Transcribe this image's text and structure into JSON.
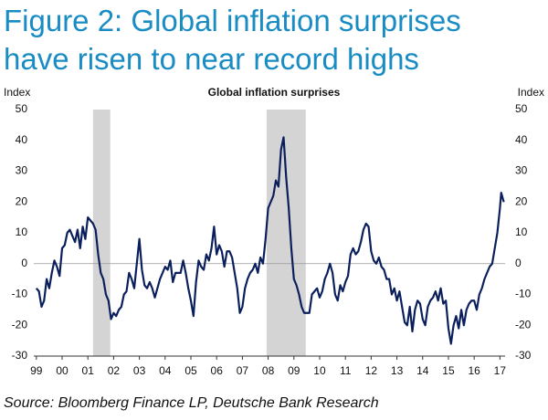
{
  "title_lines": [
    "Figure 2: Global inflation surprises",
    "have risen to near record highs"
  ],
  "source": "Source: Bloomberg Finance LP, Deutsche Bank Research",
  "chart_data": {
    "type": "line",
    "title": "Global inflation surprises",
    "ylabel": "Index",
    "y2label": "Index",
    "xlim": [
      1998.9,
      2017.2
    ],
    "xticks": [
      {
        "value": 1999,
        "label": "99"
      },
      {
        "value": 2000,
        "label": "00"
      },
      {
        "value": 2001,
        "label": "01"
      },
      {
        "value": 2002,
        "label": "02"
      },
      {
        "value": 2003,
        "label": "03"
      },
      {
        "value": 2004,
        "label": "04"
      },
      {
        "value": 2005,
        "label": "05"
      },
      {
        "value": 2006,
        "label": "06"
      },
      {
        "value": 2007,
        "label": "07"
      },
      {
        "value": 2008,
        "label": "08"
      },
      {
        "value": 2009,
        "label": "09"
      },
      {
        "value": 2010,
        "label": "10"
      },
      {
        "value": 2011,
        "label": "11"
      },
      {
        "value": 2012,
        "label": "12"
      },
      {
        "value": 2013,
        "label": "13"
      },
      {
        "value": 2014,
        "label": "14"
      },
      {
        "value": 2015,
        "label": "15"
      },
      {
        "value": 2016,
        "label": "16"
      },
      {
        "value": 2017,
        "label": "17"
      }
    ],
    "ylim": [
      -30,
      50
    ],
    "yticks": [
      -30,
      -20,
      -10,
      0,
      10,
      20,
      30,
      40,
      50
    ],
    "y2lim": [
      -30,
      50
    ],
    "y2ticks": [
      -30,
      -20,
      -10,
      0,
      10,
      20,
      30,
      40,
      50
    ],
    "reference_line": 0,
    "shaded_periods": [
      [
        2001.2,
        2001.87
      ],
      [
        2007.94,
        2009.46
      ]
    ],
    "shade_color": "#d4d4d4",
    "x": [
      1999.0,
      1999.1,
      1999.2,
      1999.3,
      1999.4,
      1999.5,
      1999.6,
      1999.7,
      1999.8,
      1999.9,
      2000.0,
      2000.1,
      2000.2,
      2000.3,
      2000.4,
      2000.5,
      2000.6,
      2000.7,
      2000.8,
      2000.9,
      2001.0,
      2001.1,
      2001.2,
      2001.3,
      2001.4,
      2001.5,
      2001.6,
      2001.7,
      2001.8,
      2001.9,
      2002.0,
      2002.1,
      2002.2,
      2002.3,
      2002.4,
      2002.5,
      2002.6,
      2002.7,
      2002.8,
      2002.9,
      2003.0,
      2003.1,
      2003.2,
      2003.3,
      2003.4,
      2003.5,
      2003.6,
      2003.7,
      2003.8,
      2003.9,
      2004.0,
      2004.1,
      2004.2,
      2004.3,
      2004.4,
      2004.6,
      2004.7,
      2004.8,
      2004.9,
      2005.0,
      2005.1,
      2005.2,
      2005.3,
      2005.4,
      2005.5,
      2005.6,
      2005.7,
      2005.8,
      2005.9,
      2006.0,
      2006.1,
      2006.2,
      2006.3,
      2006.4,
      2006.5,
      2006.6,
      2006.7,
      2006.8,
      2006.9,
      2007.0,
      2007.1,
      2007.2,
      2007.3,
      2007.4,
      2007.5,
      2007.6,
      2007.7,
      2007.8,
      2007.9,
      2008.0,
      2008.1,
      2008.2,
      2008.3,
      2008.4,
      2008.5,
      2008.6,
      2008.7,
      2008.8,
      2008.9,
      2009.0,
      2009.1,
      2009.2,
      2009.3,
      2009.4,
      2009.5,
      2009.6,
      2009.7,
      2009.8,
      2009.9,
      2010.0,
      2010.1,
      2010.2,
      2010.3,
      2010.4,
      2010.5,
      2010.6,
      2010.7,
      2010.8,
      2010.9,
      2011.0,
      2011.1,
      2011.2,
      2011.3,
      2011.4,
      2011.5,
      2011.6,
      2011.7,
      2011.8,
      2011.9,
      2012.0,
      2012.1,
      2012.2,
      2012.3,
      2012.4,
      2012.5,
      2012.6,
      2012.7,
      2012.8,
      2012.9,
      2013.0,
      2013.1,
      2013.2,
      2013.3,
      2013.4,
      2013.5,
      2013.6,
      2013.7,
      2013.8,
      2013.9,
      2014.0,
      2014.1,
      2014.2,
      2014.3,
      2014.4,
      2014.5,
      2014.6,
      2014.7,
      2014.8,
      2014.9,
      2015.0,
      2015.1,
      2015.2,
      2015.3,
      2015.4,
      2015.5,
      2015.6,
      2015.7,
      2015.8,
      2015.9,
      2016.0,
      2016.1,
      2016.2,
      2016.3,
      2016.4,
      2016.5,
      2016.6,
      2016.7,
      2016.8,
      2016.9,
      2017.0,
      2017.05,
      2017.15
    ],
    "series": [
      {
        "name": "Global inflation surprises",
        "color": "#0b1f5c",
        "values": [
          -8,
          -9,
          -14,
          -12,
          -5,
          -8,
          -3,
          1,
          -1,
          -4,
          5,
          6,
          10,
          11,
          9,
          7,
          11,
          5,
          12,
          8,
          15,
          14,
          13,
          11,
          3,
          -3,
          -5,
          -10,
          -12,
          -18,
          -16,
          -17,
          -15,
          -14,
          -10,
          -9,
          -3,
          -5,
          -8,
          0,
          8,
          -2,
          -7,
          -8,
          -6,
          -8,
          -11,
          -8,
          -5,
          -3,
          -1,
          -2,
          1,
          -6,
          -3,
          -3,
          1,
          -3,
          -8,
          -12,
          -17,
          -6,
          1,
          -1,
          -2,
          3,
          1,
          5,
          12,
          3,
          6,
          4,
          -1,
          4,
          4,
          2,
          -3,
          -8,
          -16,
          -14,
          -8,
          -5,
          -3,
          -2,
          0,
          -3,
          2,
          0,
          8,
          18,
          20,
          22,
          27,
          25,
          37,
          41,
          28,
          18,
          5,
          -5,
          -7,
          -10,
          -14,
          -16,
          -16,
          -16,
          -10,
          -9,
          -8,
          -11,
          -9,
          -5,
          -3,
          0,
          -3,
          -10,
          -12,
          -7,
          -9,
          -6,
          -4,
          3,
          5,
          3,
          4,
          7,
          11,
          13,
          12,
          4,
          1,
          0,
          2,
          -1,
          -2,
          -5,
          -5,
          -10,
          -8,
          -12,
          -9,
          -14,
          -19,
          -20,
          -14,
          -22,
          -15,
          -12,
          -13,
          -18,
          -20,
          -14,
          -12,
          -11,
          -9,
          -12,
          -8,
          -13,
          -12,
          -21,
          -26,
          -20,
          -17,
          -21,
          -15,
          -20,
          -15,
          -13,
          -12,
          -12,
          -15,
          -10,
          -8,
          -5,
          -3,
          -1,
          0,
          5,
          10,
          18,
          23,
          20
        ]
      }
    ]
  }
}
